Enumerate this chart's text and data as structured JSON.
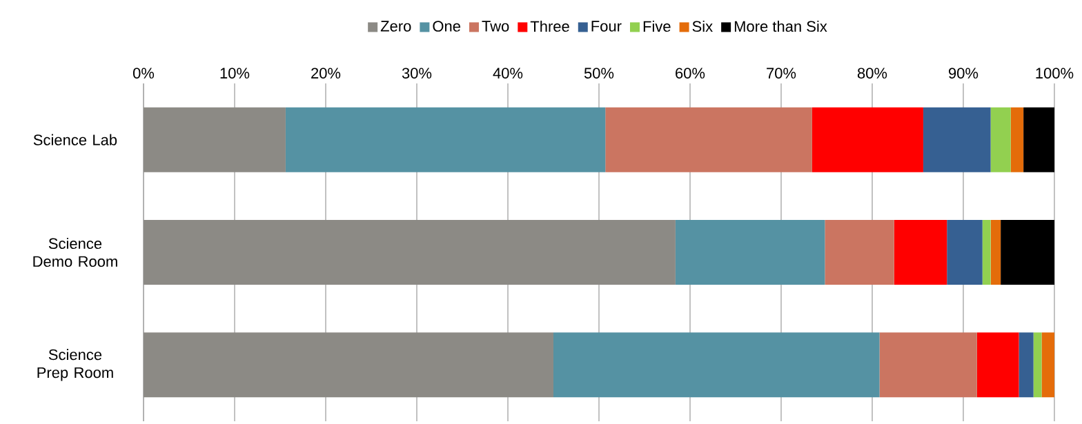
{
  "chart_data": {
    "type": "bar",
    "orientation": "horizontal",
    "stacked": true,
    "categories": [
      "Science Lab",
      "Science Demo Room",
      "Science Prep Room"
    ],
    "series": [
      {
        "name": "Zero",
        "color": "#8c8a85",
        "values": [
          15.6,
          58.4,
          45.0
        ]
      },
      {
        "name": "One",
        "color": "#5592a3",
        "values": [
          35.1,
          16.4,
          35.8
        ]
      },
      {
        "name": "Two",
        "color": "#cb7561",
        "values": [
          22.7,
          7.6,
          10.7
        ]
      },
      {
        "name": "Three",
        "color": "#ff0000",
        "values": [
          12.2,
          5.8,
          4.6
        ]
      },
      {
        "name": "Four",
        "color": "#366092",
        "values": [
          7.4,
          3.9,
          1.6
        ]
      },
      {
        "name": "Five",
        "color": "#92d050",
        "values": [
          2.2,
          0.9,
          0.9
        ]
      },
      {
        "name": "Six",
        "color": "#e46c0a",
        "values": [
          1.4,
          1.1,
          1.4
        ]
      },
      {
        "name": "More than Six",
        "color": "#000000",
        "values": [
          3.4,
          5.9,
          0
        ]
      }
    ],
    "xlim": [
      0,
      100
    ],
    "xticks": [
      {
        "value": 0,
        "label": "0%"
      },
      {
        "value": 10,
        "label": "10%"
      },
      {
        "value": 20,
        "label": "20%"
      },
      {
        "value": 30,
        "label": "30%"
      },
      {
        "value": 40,
        "label": "40%"
      },
      {
        "value": 50,
        "label": "50%"
      },
      {
        "value": 60,
        "label": "60%"
      },
      {
        "value": 70,
        "label": "70%"
      },
      {
        "value": 80,
        "label": "80%"
      },
      {
        "value": 90,
        "label": "90%"
      },
      {
        "value": 100,
        "label": "100%"
      }
    ],
    "grid": "x",
    "legend": "top"
  }
}
